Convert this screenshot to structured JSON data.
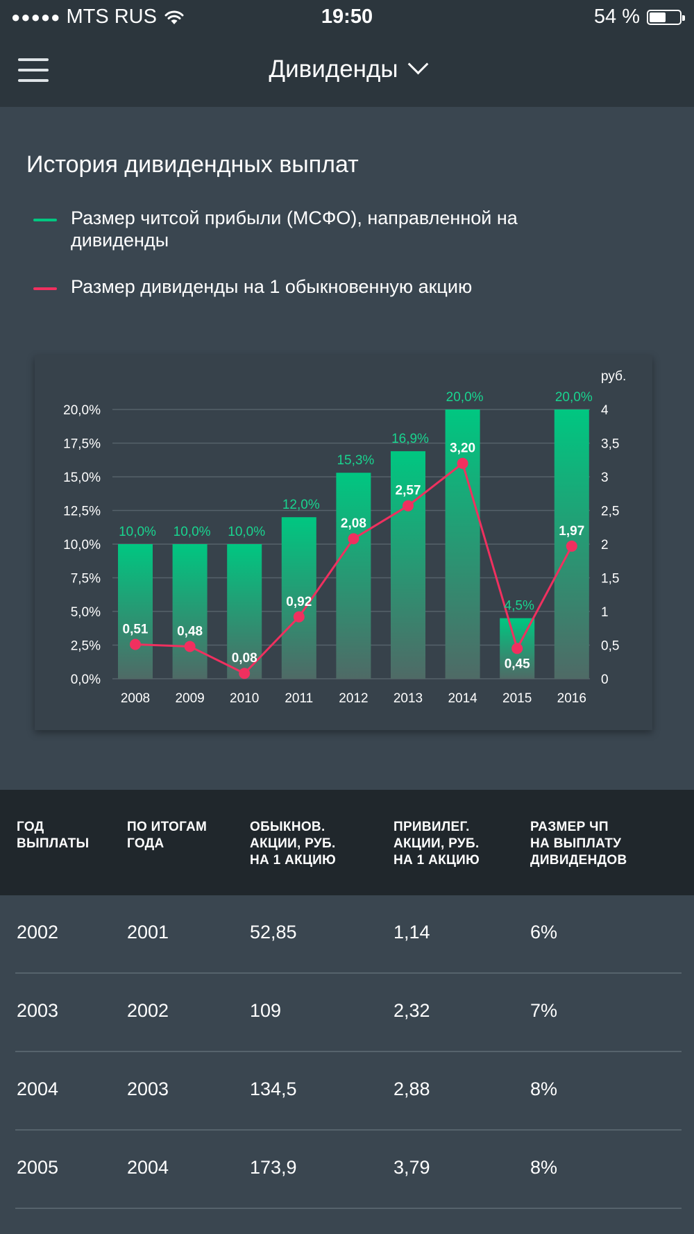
{
  "status_bar": {
    "signal_dots": "●●●●●",
    "carrier": "MTS RUS",
    "wifi_icon": "wifi-icon",
    "time": "19:50",
    "battery_percent": "54 %",
    "battery_level": 0.54
  },
  "nav": {
    "menu_icon": "hamburger-menu-icon",
    "title": "Дивиденды",
    "dropdown_icon": "chevron-down-icon"
  },
  "section": {
    "title": "История дивидендных выплат"
  },
  "legend": [
    {
      "label": "Размер читсой прибыли (МСФО), направленной на дивиденды",
      "color": "#00c781"
    },
    {
      "label": "Размер дивиденды на 1 обыкновенную акцию",
      "color": "#f0305f"
    }
  ],
  "colors": {
    "bar_top": "#00c781",
    "bar_bottom": "#4f6a66",
    "line": "#f0305f",
    "bar_label": "#19d48f",
    "grid": "#56626b",
    "axis_text": "#ffffff"
  },
  "chart_data": {
    "type": "bar",
    "categories": [
      "2008",
      "2009",
      "2010",
      "2011",
      "2012",
      "2013",
      "2014",
      "2015",
      "2016"
    ],
    "series": [
      {
        "type": "bar",
        "axis": "left",
        "values": [
          10.0,
          10.0,
          10.0,
          12.0,
          15.3,
          16.9,
          20.0,
          4.5,
          20.0
        ],
        "labels": [
          "10,0%",
          "10,0%",
          "10,0%",
          "12,0%",
          "15,3%",
          "16,9%",
          "20,0%",
          "4,5%",
          "20,0%"
        ]
      },
      {
        "type": "line",
        "axis": "right",
        "values": [
          0.51,
          0.48,
          0.08,
          0.92,
          2.08,
          2.57,
          3.2,
          0.45,
          1.97
        ],
        "labels": [
          "0,51",
          "0,48",
          "0,08",
          "0,92",
          "2,08",
          "2,57",
          "3,20",
          "0,45",
          "1,97"
        ]
      }
    ],
    "y_left": {
      "range": [
        0,
        20
      ],
      "ticks": [
        0,
        2.5,
        5,
        7.5,
        10,
        12.5,
        15,
        17.5,
        20
      ],
      "tick_labels": [
        "0,0%",
        "2,5%",
        "5,0%",
        "7,5%",
        "10,0%",
        "12,5%",
        "15,0%",
        "17,5%",
        "20,0%"
      ]
    },
    "y_right": {
      "unit": "руб.",
      "range": [
        0,
        4
      ],
      "ticks": [
        0,
        0.5,
        1,
        1.5,
        2,
        2.5,
        3,
        3.5,
        4
      ],
      "tick_labels": [
        "0",
        "0,5",
        "1",
        "1,5",
        "2",
        "2,5",
        "3",
        "3,5",
        "4"
      ]
    },
    "grid": true
  },
  "table": {
    "headers": [
      "ГОД\nВЫПЛАТЫ",
      "ПО ИТОГАМ\nГОДА",
      "ОБЫКНОВ.\nАКЦИИ, РУБ.\nНА 1 АКЦИЮ",
      "ПРИВИЛЕГ.\nАКЦИИ, РУБ.\nНА 1 АКЦИЮ",
      "РАЗМЕР ЧП\nНА ВЫПЛАТУ\nДИВИДЕНДОВ"
    ],
    "rows": [
      [
        "2002",
        "2001",
        "52,85",
        "1,14",
        "6%"
      ],
      [
        "2003",
        "2002",
        "109",
        "2,32",
        "7%"
      ],
      [
        "2004",
        "2003",
        "134,5",
        "2,88",
        "8%"
      ],
      [
        "2005",
        "2004",
        "173,9",
        "3,79",
        "8%"
      ]
    ]
  }
}
